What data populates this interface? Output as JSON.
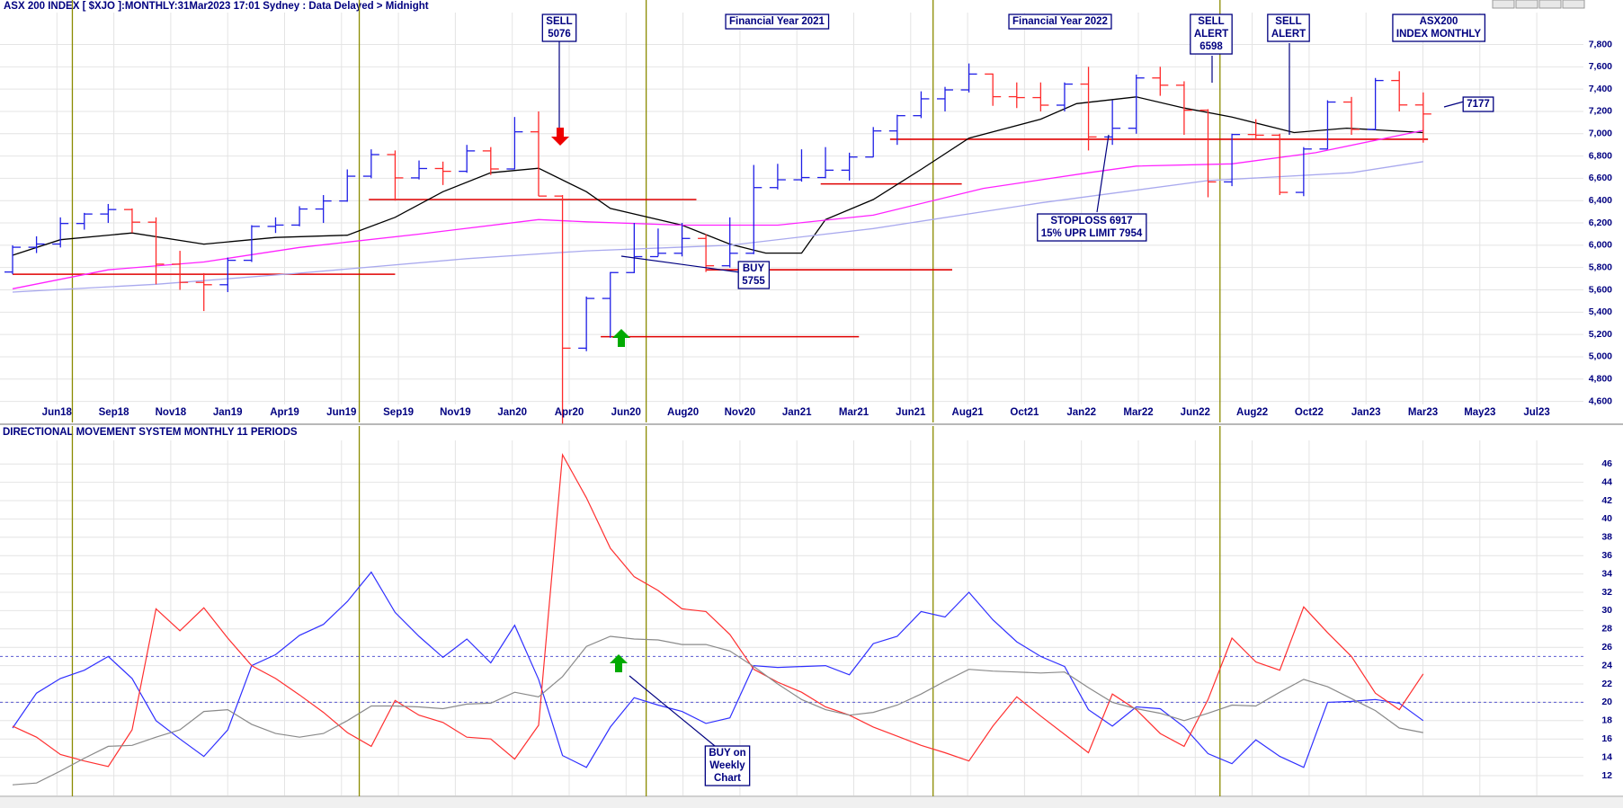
{
  "chart_data": [
    {
      "type": "ohlc",
      "title": "ASX 200 INDEX [ $XJO ]:MONTHLY:31Mar2023 17:01 Sydney : Data Delayed > Midnight",
      "open": [
        5760,
        5982,
        6011,
        6195,
        6280,
        6320,
        6207,
        5830,
        5667,
        5646,
        5865,
        6169,
        6181,
        6325,
        6397,
        6619,
        6813,
        6604,
        6688,
        6663,
        6846,
        6684,
        7017,
        6441,
        5077,
        5523,
        5755,
        5898,
        5928,
        6061,
        5816,
        5928,
        6517,
        6587,
        6607,
        6673,
        6791,
        7025,
        7162,
        7313,
        7393,
        7535,
        7332,
        7324,
        7256,
        7445,
        6971,
        7049,
        7500,
        7435,
        7211,
        6568,
        6993,
        6987,
        6474,
        6863,
        7284,
        7039,
        7477,
        7258
      ],
      "high": [
        6000,
        6080,
        6250,
        6290,
        6370,
        6330,
        6250,
        5950,
        5750,
        5890,
        6180,
        6250,
        6350,
        6450,
        6680,
        6860,
        6850,
        6760,
        6750,
        6900,
        6880,
        7150,
        7200,
        6450,
        5540,
        5760,
        6200,
        6150,
        6200,
        6100,
        6250,
        6720,
        6730,
        6860,
        6880,
        6830,
        7060,
        7170,
        7380,
        7420,
        7630,
        7540,
        7460,
        7460,
        7460,
        7600,
        7300,
        7530,
        7600,
        7470,
        7220,
        7000,
        7130,
        7000,
        6880,
        7300,
        7330,
        7500,
        7560,
        7370
      ],
      "low": [
        5740,
        5930,
        5980,
        6140,
        6200,
        6110,
        5650,
        5600,
        5410,
        5580,
        5850,
        6110,
        6170,
        6200,
        6390,
        6600,
        6400,
        6590,
        6540,
        6650,
        6630,
        6680,
        6440,
        4400,
        5050,
        5170,
        5750,
        5900,
        5900,
        5760,
        5800,
        5920,
        6500,
        6570,
        6600,
        6580,
        6790,
        6900,
        7140,
        7200,
        7370,
        7250,
        7230,
        7200,
        7200,
        6850,
        6900,
        7000,
        7340,
        6990,
        6430,
        6530,
        6950,
        6450,
        6440,
        6860,
        6990,
        7030,
        7200,
        6920
      ],
      "close": [
        5982,
        6011,
        6195,
        6280,
        6320,
        6207,
        5830,
        5667,
        5646,
        5865,
        6169,
        6181,
        6325,
        6397,
        6619,
        6813,
        6604,
        6688,
        6663,
        6846,
        6684,
        7017,
        6441,
        5077,
        5523,
        5755,
        5898,
        5928,
        6061,
        5816,
        5928,
        6517,
        6587,
        6607,
        6673,
        6791,
        7025,
        7162,
        7313,
        7393,
        7535,
        7332,
        7324,
        7256,
        7445,
        6971,
        7049,
        7500,
        7435,
        7211,
        6568,
        6993,
        6987,
        6474,
        6863,
        7284,
        7039,
        7477,
        7258,
        7177
      ],
      "up_color": "#1f1fe6",
      "down_color": "#ff2a2a",
      "moving_averages": [
        {
          "color": "#000000",
          "x": [
            0,
            2,
            5,
            8,
            11,
            14,
            16,
            18,
            20,
            22,
            24,
            25,
            28,
            30,
            31.5,
            33,
            34,
            36,
            38,
            40,
            43,
            44.5,
            47,
            49,
            51,
            53.6,
            55.8,
            59
          ],
          "values": [
            5910,
            6050,
            6110,
            6010,
            6070,
            6090,
            6250,
            6480,
            6650,
            6690,
            6480,
            6330,
            6180,
            6010,
            5930,
            5930,
            6230,
            6410,
            6680,
            6960,
            7130,
            7270,
            7330,
            7230,
            7150,
            7010,
            7050,
            7010
          ]
        },
        {
          "color": "#ff22ff",
          "x": [
            0,
            4,
            8,
            12,
            17,
            22,
            24,
            28,
            32,
            36,
            40.6,
            45,
            47,
            51,
            54.5,
            59
          ],
          "values": [
            5610,
            5780,
            5850,
            5980,
            6100,
            6230,
            6210,
            6180,
            6180,
            6270,
            6510,
            6650,
            6710,
            6730,
            6830,
            7030
          ]
        },
        {
          "color": "#a9a9ee",
          "x": [
            0,
            6,
            12,
            19,
            24,
            30,
            36,
            43,
            50,
            56,
            59
          ],
          "values": [
            5580,
            5650,
            5750,
            5880,
            5950,
            6000,
            6150,
            6380,
            6580,
            6650,
            6750
          ]
        }
      ],
      "level_color": "#e00000",
      "levels": [
        {
          "value": 5740,
          "x": [
            0,
            16
          ]
        },
        {
          "value": 6410,
          "x": [
            14.9,
            28.6
          ]
        },
        {
          "value": 5180,
          "x": [
            24.6,
            35.4
          ]
        },
        {
          "value": 5780,
          "x": [
            29,
            39.3
          ]
        },
        {
          "value": 6550,
          "x": [
            33.8,
            39.7
          ]
        },
        {
          "value": 6950,
          "x": [
            36.7,
            59.2
          ]
        }
      ],
      "ylim": [
        4400,
        7950
      ],
      "yticks": [
        {
          "value": 4600,
          "label": "4,600"
        },
        {
          "value": 4800,
          "label": "4,800"
        },
        {
          "value": 5000,
          "label": "5,000"
        },
        {
          "value": 5200,
          "label": "5,200"
        },
        {
          "value": 5400,
          "label": "5,400"
        },
        {
          "value": 5600,
          "label": "5,600"
        },
        {
          "value": 5800,
          "label": "5,800"
        },
        {
          "value": 6000,
          "label": "6,000"
        },
        {
          "value": 6200,
          "label": "6,200"
        },
        {
          "value": 6400,
          "label": "6,400"
        },
        {
          "value": 6600,
          "label": "6,600"
        },
        {
          "value": 6800,
          "label": "6,800"
        },
        {
          "value": 7000,
          "label": "7,000"
        },
        {
          "value": 7200,
          "label": "7,200"
        },
        {
          "value": 7400,
          "label": "7,400"
        },
        {
          "value": 7600,
          "label": "7,600"
        },
        {
          "value": 7800,
          "label": "7,800"
        }
      ],
      "xtick_labels": [
        "Jun18",
        "Sep18",
        "Nov18",
        "Jan19",
        "Apr19",
        "Jun19",
        "Sep19",
        "Nov19",
        "Jan20",
        "Apr20",
        "Jun20",
        "Aug20",
        "Nov20",
        "Jan21",
        "Mar21",
        "Jun21",
        "Aug21",
        "Oct21",
        "Jan22",
        "Mar22",
        "Jun22",
        "Aug22",
        "Oct22",
        "Jan23",
        "Mar23",
        "May23",
        "Jul23"
      ],
      "grid": true,
      "annotations": [
        {
          "lines": [
            "SELL",
            "5076"
          ]
        },
        {
          "lines": [
            "Financial Year 2021"
          ]
        },
        {
          "lines": [
            "Financial Year 2022"
          ]
        },
        {
          "lines": [
            "SELL",
            "ALERT",
            "6598"
          ]
        },
        {
          "lines": [
            "SELL",
            "ALERT"
          ]
        },
        {
          "lines": [
            "ASX200",
            "INDEX MONTHLY"
          ]
        },
        {
          "lines": [
            "7177"
          ]
        },
        {
          "lines": [
            "BUY",
            "5755"
          ]
        },
        {
          "lines": [
            "STOPLOSS 6917",
            "15% UPR LIMIT 7954"
          ]
        }
      ]
    },
    {
      "type": "line",
      "title": "DIRECTIONAL MOVEMENT SYSTEM MONTHLY 11 PERIODS",
      "series": [
        {
          "color": "#3030ff",
          "values": [
            17.2,
            21,
            22.6,
            23.5,
            25,
            22.6,
            18,
            16,
            14.1,
            17,
            24,
            25.2,
            27.3,
            28.5,
            31,
            34.2,
            29.8,
            27.2,
            24.9,
            26.9,
            24.3,
            28.4,
            22.5,
            14.2,
            12.9,
            17.3,
            20.5,
            19.7,
            19,
            17.7,
            18.3,
            24,
            23.8,
            23.9,
            24,
            23,
            26.4,
            27.2,
            29.9,
            29.3,
            32,
            29,
            26.6,
            25,
            23.9,
            19.2,
            17.4,
            19.5,
            19.3,
            17.3,
            14.4,
            13.3,
            15.9,
            14.1,
            12.9,
            20,
            20.1,
            20.3,
            19.9,
            18
          ]
        },
        {
          "color": "#ff3030",
          "values": [
            17.4,
            16.2,
            14.3,
            13.6,
            13,
            17,
            30.2,
            27.8,
            30.3,
            27,
            24,
            22.6,
            20.8,
            18.9,
            16.7,
            15.2,
            20.2,
            18.6,
            17.8,
            16.2,
            16,
            13.8,
            17.5,
            47,
            42.3,
            36.8,
            33.7,
            32.2,
            30.2,
            29.9,
            27.4,
            23.6,
            22.2,
            21.1,
            19.5,
            18.6,
            17.3,
            16.3,
            15.3,
            14.5,
            13.6,
            17.4,
            20.6,
            18.5,
            16.5,
            14.5,
            20.9,
            19.2,
            16.6,
            15.2,
            20.3,
            27,
            24.4,
            23.5,
            30.4,
            27.6,
            25,
            21,
            19.2,
            23.1
          ]
        },
        {
          "color": "#8a8a8a",
          "values": [
            11,
            11.2,
            12.5,
            13.9,
            15.2,
            15.3,
            16.2,
            17,
            19,
            19.2,
            17.6,
            16.6,
            16.2,
            16.6,
            18,
            19.6,
            19.6,
            19.5,
            19.3,
            19.8,
            19.9,
            21.1,
            20.6,
            22.8,
            26.1,
            27.2,
            26.9,
            26.8,
            26.3,
            26.3,
            25.6,
            23.9,
            22,
            20.3,
            19.2,
            18.6,
            18.9,
            19.7,
            20.9,
            22.3,
            23.6,
            23.4,
            23.3,
            23.2,
            23.3,
            21.6,
            20,
            19.3,
            18.8,
            18,
            18.8,
            19.7,
            19.6,
            21.1,
            22.5,
            21.7,
            20.4,
            19.1,
            17.2,
            16.7
          ]
        }
      ],
      "reference_lines": [
        {
          "value": 25,
          "color": "#5a5ad0"
        },
        {
          "value": 20,
          "color": "#5a5ad0"
        }
      ],
      "ylim": [
        10,
        48.5
      ],
      "yticks": [
        12,
        14,
        16,
        18,
        20,
        22,
        24,
        26,
        28,
        30,
        32,
        34,
        36,
        38,
        40,
        42,
        44,
        46
      ],
      "grid": true,
      "annotations": [
        {
          "lines": [
            "BUY on",
            "Weekly",
            "Chart"
          ]
        }
      ]
    }
  ]
}
